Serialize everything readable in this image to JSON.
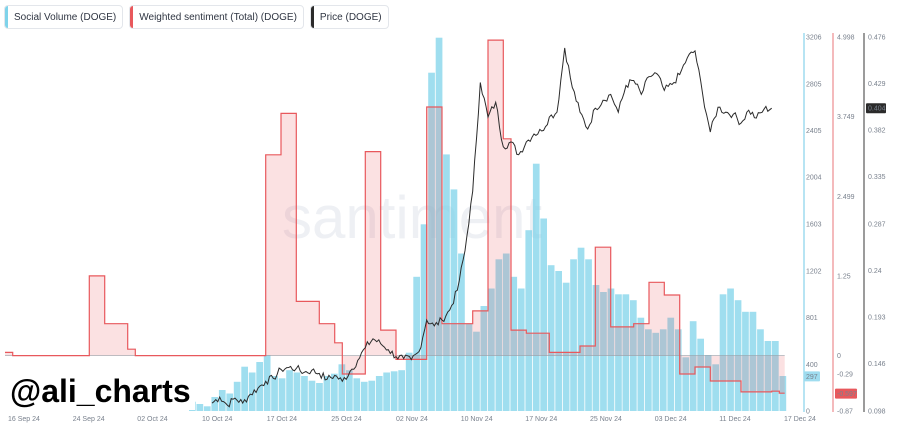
{
  "legend": [
    {
      "label": "Social Volume (DOGE)",
      "color": "#7fd3ea"
    },
    {
      "label": "Weighted sentiment (Total) (DOGE)",
      "color": "#e8585c"
    },
    {
      "label": "Price (DOGE)",
      "color": "#2b2b2b"
    }
  ],
  "watermark": "santiment",
  "handle": "@ali_charts",
  "chart_data": {
    "type": "bar",
    "x_ticks": [
      "16 Sep 24",
      "24 Sep 24",
      "02 Oct 24",
      "10 Oct 24",
      "17 Oct 24",
      "25 Oct 24",
      "02 Nov 24",
      "10 Nov 24",
      "17 Nov 24",
      "25 Nov 24",
      "03 Dec 24",
      "11 Dec 24",
      "17 Dec 24"
    ],
    "axes": {
      "social_volume": {
        "ticks": [
          "3206",
          "2805",
          "2405",
          "2004",
          "1603",
          "1202",
          "801",
          "400",
          "0"
        ],
        "min": 0,
        "max": 3206
      },
      "sentiment": {
        "ticks": [
          "4.998",
          "3.749",
          "2.499",
          "1.25",
          "0",
          "-0.29",
          "-0.87"
        ],
        "min": -0.87,
        "max": 4.998
      },
      "price": {
        "ticks": [
          "0.476",
          "0.429",
          "0.382",
          "0.335",
          "0.287",
          "0.24",
          "0.193",
          "0.146",
          "0.098"
        ],
        "min": 0.098,
        "max": 0.476
      }
    },
    "current_labels": {
      "social_volume": "297",
      "sentiment": "-0.597",
      "price": "0.404"
    },
    "series": [
      {
        "name": "Social Volume (DOGE)",
        "kind": "bar",
        "color": "#7fd3ea",
        "start_day": 24,
        "end_day": 102,
        "values": [
          80,
          60,
          40,
          120,
          180,
          150,
          250,
          380,
          330,
          420,
          480,
          300,
          280,
          350,
          330,
          300,
          260,
          240,
          300,
          320,
          400,
          350,
          280,
          250,
          260,
          300,
          330,
          340,
          350,
          500,
          1150,
          1600,
          2900,
          3200,
          2200,
          1900,
          1350,
          750,
          680,
          900,
          1050,
          1300,
          1350,
          1150,
          1050,
          1550,
          2120,
          1650,
          1250,
          1200,
          1100,
          1300,
          1400,
          1300,
          1080,
          1020,
          1050,
          1000,
          1000,
          950,
          800,
          700,
          670,
          700,
          800,
          700,
          460,
          770,
          620,
          480,
          400,
          1000,
          1050,
          950,
          850,
          850,
          700,
          600,
          600,
          300
        ]
      },
      {
        "name": "Weighted sentiment (Total) (DOGE)",
        "kind": "step-area",
        "color": "#e8585c",
        "points": [
          [
            0,
            0.05
          ],
          [
            1,
            0
          ],
          [
            10,
            0
          ],
          [
            11,
            1.25
          ],
          [
            13,
            0.5
          ],
          [
            16,
            0.1
          ],
          [
            17,
            0
          ],
          [
            33,
            0
          ],
          [
            34,
            3.15
          ],
          [
            36,
            3.8
          ],
          [
            38,
            0.85
          ],
          [
            41,
            0.5
          ],
          [
            43,
            0.2
          ],
          [
            44,
            -0.29
          ],
          [
            47,
            3.2
          ],
          [
            49,
            0.4
          ],
          [
            51,
            -0.06
          ],
          [
            55,
            3.9
          ],
          [
            57,
            0.5
          ],
          [
            61,
            0.7
          ],
          [
            63,
            4.95
          ],
          [
            65,
            3.4
          ],
          [
            66,
            0.4
          ],
          [
            68,
            0.35
          ],
          [
            71,
            0.05
          ],
          [
            74,
            0.05
          ],
          [
            75,
            0.15
          ],
          [
            77,
            1.7
          ],
          [
            79,
            0.45
          ],
          [
            82,
            0.5
          ],
          [
            84,
            1.15
          ],
          [
            86,
            0.95
          ],
          [
            88,
            -0.29
          ],
          [
            90,
            -0.18
          ],
          [
            92,
            -0.4
          ],
          [
            96,
            -0.57
          ],
          [
            100,
            -0.56
          ],
          [
            101,
            -0.59
          ]
        ]
      },
      {
        "name": "Price (DOGE)",
        "kind": "line",
        "color": "#2b2b2b",
        "points": [
          [
            27,
            0.106
          ],
          [
            28,
            0.112
          ],
          [
            29,
            0.104
          ],
          [
            30,
            0.111
          ],
          [
            31,
            0.106
          ],
          [
            32,
            0.115
          ],
          [
            33,
            0.121
          ],
          [
            34,
            0.128
          ],
          [
            35,
            0.131
          ],
          [
            36,
            0.14
          ],
          [
            37,
            0.142
          ],
          [
            38,
            0.141
          ],
          [
            39,
            0.137
          ],
          [
            40,
            0.139
          ],
          [
            41,
            0.136
          ],
          [
            42,
            0.13
          ],
          [
            43,
            0.134
          ],
          [
            44,
            0.128
          ],
          [
            45,
            0.138
          ],
          [
            46,
            0.149
          ],
          [
            47,
            0.162
          ],
          [
            48,
            0.171
          ],
          [
            49,
            0.166
          ],
          [
            50,
            0.16
          ],
          [
            51,
            0.153
          ],
          [
            52,
            0.151
          ],
          [
            53,
            0.15
          ],
          [
            54,
            0.158
          ],
          [
            55,
            0.19
          ],
          [
            56,
            0.184
          ],
          [
            57,
            0.19
          ],
          [
            58,
            0.2
          ],
          [
            59,
            0.22
          ],
          [
            60,
            0.26
          ],
          [
            61,
            0.32
          ],
          [
            62,
            0.43
          ],
          [
            63,
            0.395
          ],
          [
            64,
            0.41
          ],
          [
            65,
            0.365
          ],
          [
            66,
            0.37
          ],
          [
            67,
            0.357
          ],
          [
            68,
            0.37
          ],
          [
            69,
            0.378
          ],
          [
            70,
            0.381
          ],
          [
            71,
            0.395
          ],
          [
            72,
            0.4
          ],
          [
            73,
            0.465
          ],
          [
            74,
            0.425
          ],
          [
            75,
            0.4
          ],
          [
            76,
            0.383
          ],
          [
            77,
            0.404
          ],
          [
            78,
            0.412
          ],
          [
            79,
            0.418
          ],
          [
            80,
            0.4
          ],
          [
            81,
            0.427
          ],
          [
            82,
            0.432
          ],
          [
            83,
            0.418
          ],
          [
            84,
            0.436
          ],
          [
            85,
            0.439
          ],
          [
            86,
            0.422
          ],
          [
            87,
            0.428
          ],
          [
            88,
            0.438
          ],
          [
            89,
            0.455
          ],
          [
            90,
            0.462
          ],
          [
            91,
            0.418
          ],
          [
            92,
            0.38
          ],
          [
            93,
            0.405
          ],
          [
            94,
            0.4
          ],
          [
            95,
            0.398
          ],
          [
            96,
            0.389
          ],
          [
            97,
            0.402
          ],
          [
            98,
            0.394
          ],
          [
            99,
            0.403
          ],
          [
            100,
            0.404
          ]
        ]
      }
    ],
    "grid": false
  }
}
